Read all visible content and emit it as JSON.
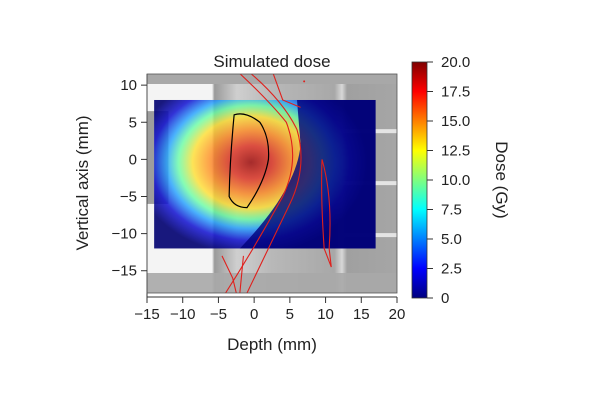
{
  "chart_data": {
    "type": "heatmap",
    "title": "Simulated dose",
    "xlabel": "Depth (mm)",
    "ylabel": "Vertical axis (mm)",
    "xlim": [
      -15,
      20
    ],
    "ylim": [
      -18,
      11.5
    ],
    "xticks": [
      -15,
      -10,
      -5,
      0,
      5,
      10,
      15,
      20
    ],
    "xtick_labels": [
      "−15",
      "−10",
      "−5",
      "0",
      "5",
      "10",
      "15",
      "20"
    ],
    "yticks": [
      10,
      5,
      0,
      -5,
      -10,
      -15
    ],
    "ytick_labels": [
      "10",
      "5",
      "0",
      "−5",
      "−10",
      "−15"
    ],
    "colorbar": {
      "label": "Dose (Gy)",
      "range": [
        0,
        20
      ],
      "ticks": [
        0,
        2.5,
        5,
        7.5,
        10,
        12.5,
        15,
        17.5,
        20
      ],
      "tick_labels": [
        "0",
        "2.5",
        "5.0",
        "7.5",
        "10.0",
        "12.5",
        "15.0",
        "17.5",
        "20.0"
      ],
      "colormap": "jet"
    },
    "dose_field": {
      "x_range": [
        -14,
        17
      ],
      "y_range": [
        -12,
        8
      ],
      "peak_dose": 20,
      "peak_center": [
        -1,
        0
      ],
      "entrance_dose_approx": 15,
      "distal_falloff_depth_approx": 5
    },
    "contours": [
      {
        "name": "target",
        "color": "#000000"
      },
      {
        "name": "structures",
        "color": "#e0201c"
      }
    ]
  }
}
